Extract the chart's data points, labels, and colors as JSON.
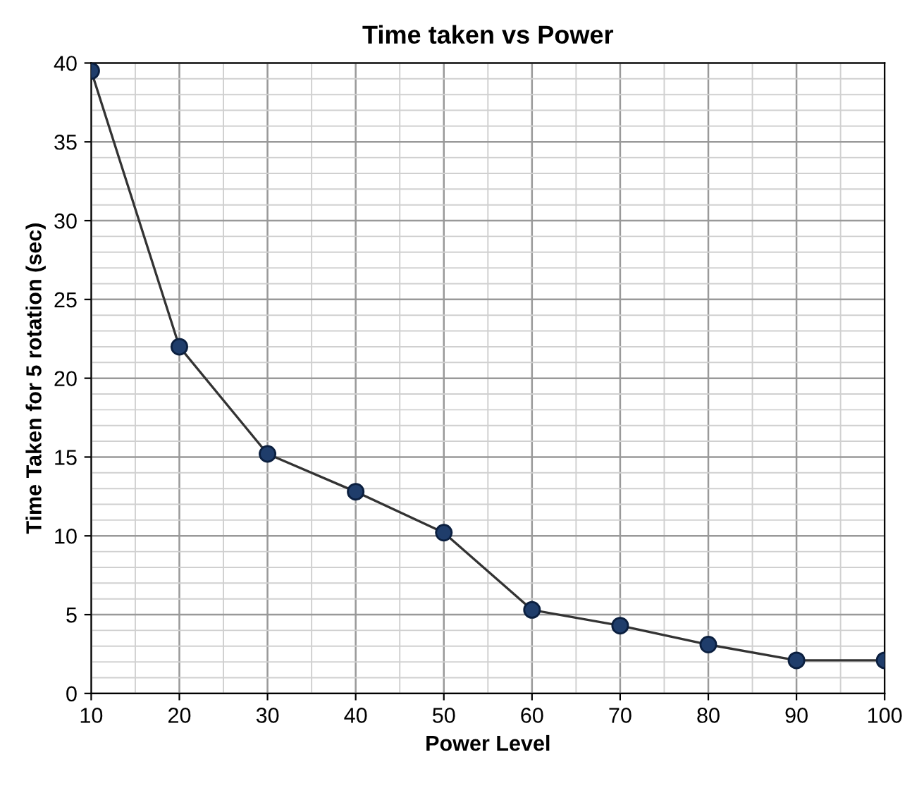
{
  "chart_data": {
    "type": "line",
    "title": "Time taken vs Power",
    "xlabel": "Power Level",
    "ylabel": "Time Taken for 5 rotation (sec)",
    "x": [
      10,
      20,
      30,
      40,
      50,
      60,
      70,
      80,
      90,
      100
    ],
    "series": [
      {
        "color": "#1f3d6b",
        "values": [
          39.5,
          22,
          15.2,
          12.8,
          10.2,
          5.3,
          4.3,
          3.1,
          2.1,
          2.1
        ]
      }
    ],
    "xlim": [
      10,
      100
    ],
    "xticks": [
      10,
      20,
      30,
      40,
      50,
      60,
      70,
      80,
      90,
      100
    ],
    "ylim": [
      0,
      40
    ],
    "yticks": [
      0,
      5,
      10,
      15,
      20,
      25,
      30,
      35,
      40
    ],
    "grid": true,
    "marker": "circle",
    "line_style": "solid"
  }
}
